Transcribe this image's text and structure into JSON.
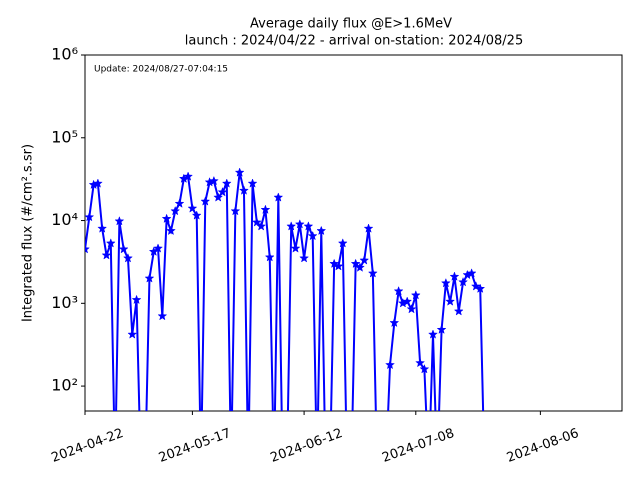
{
  "chart_data": {
    "type": "line",
    "title": "Average daily flux @E>1.6MeV",
    "subtitle": "launch : 2024/04/22 - arrival on-station: 2024/08/25",
    "annotation": "Update: 2024/08/27-07:04:15",
    "ylabel": "Integrated flux (#/cm².s.sr)",
    "yscale": "log",
    "xlim": [
      "2024-04-22",
      "2024-08-25"
    ],
    "xticks": [
      "2024-04-22",
      "2024-05-17",
      "2024-06-12",
      "2024-07-08",
      "2024-08-06"
    ],
    "ylim": [
      50,
      1000000
    ],
    "yticks": [
      {
        "value": 100,
        "label": "10²"
      },
      {
        "value": 1000,
        "label": "10³"
      },
      {
        "value": 10000,
        "label": "10⁴"
      },
      {
        "value": 100000,
        "label": "10⁵"
      },
      {
        "value": 1000000,
        "label": "10⁶"
      }
    ],
    "x": [
      "2024-04-22",
      "2024-04-23",
      "2024-04-24",
      "2024-04-25",
      "2024-04-26",
      "2024-04-27",
      "2024-04-28",
      "2024-04-29",
      "2024-04-30",
      "2024-05-01",
      "2024-05-02",
      "2024-05-03",
      "2024-05-04",
      "2024-05-05",
      "2024-05-06",
      "2024-05-07",
      "2024-05-08",
      "2024-05-09",
      "2024-05-10",
      "2024-05-11",
      "2024-05-12",
      "2024-05-13",
      "2024-05-14",
      "2024-05-15",
      "2024-05-16",
      "2024-05-17",
      "2024-05-18",
      "2024-05-19",
      "2024-05-20",
      "2024-05-21",
      "2024-05-22",
      "2024-05-23",
      "2024-05-24",
      "2024-05-25",
      "2024-05-26",
      "2024-05-27",
      "2024-05-28",
      "2024-05-29",
      "2024-05-30",
      "2024-05-31",
      "2024-06-01",
      "2024-06-02",
      "2024-06-03",
      "2024-06-04",
      "2024-06-05",
      "2024-06-06",
      "2024-06-07",
      "2024-06-08",
      "2024-06-09",
      "2024-06-10",
      "2024-06-11",
      "2024-06-12",
      "2024-06-13",
      "2024-06-14",
      "2024-06-15",
      "2024-06-16",
      "2024-06-17",
      "2024-06-18",
      "2024-06-19",
      "2024-06-20",
      "2024-06-21",
      "2024-06-22",
      "2024-06-23",
      "2024-06-24",
      "2024-06-25",
      "2024-06-26",
      "2024-06-27",
      "2024-06-28",
      "2024-06-29",
      "2024-06-30",
      "2024-07-01",
      "2024-07-02",
      "2024-07-03",
      "2024-07-04",
      "2024-07-05",
      "2024-07-06",
      "2024-07-07",
      "2024-07-08",
      "2024-07-09",
      "2024-07-10",
      "2024-07-11",
      "2024-07-12",
      "2024-07-13",
      "2024-07-14",
      "2024-07-15",
      "2024-07-16",
      "2024-07-17",
      "2024-07-18",
      "2024-07-19",
      "2024-07-20",
      "2024-07-21",
      "2024-07-22",
      "2024-07-23",
      "2024-07-24"
    ],
    "series": [
      {
        "color": "#0000ff",
        "values": [
          4500,
          11000,
          27000,
          28000,
          8000,
          3800,
          5300,
          0,
          9800,
          4500,
          3500,
          420,
          1100,
          0,
          0,
          2000,
          4200,
          4600,
          700,
          10500,
          7500,
          13000,
          16000,
          32000,
          34000,
          14000,
          11500,
          0,
          17000,
          29000,
          30000,
          19000,
          22000,
          28000,
          0,
          13000,
          38000,
          23000,
          0,
          28000,
          9500,
          8500,
          13500,
          3600,
          0,
          19000,
          0,
          0,
          8500,
          4600,
          9000,
          3500,
          8500,
          6500,
          0,
          7500,
          0,
          0,
          3000,
          2800,
          5300,
          0,
          0,
          3000,
          2700,
          3300,
          8000,
          2300,
          0,
          0,
          0,
          180,
          580,
          1400,
          1000,
          1050,
          850,
          1250,
          190,
          160,
          0,
          420,
          0,
          480,
          1750,
          1050,
          2100,
          800,
          1800,
          2200,
          2300,
          1600,
          1500,
          0
        ]
      }
    ]
  }
}
